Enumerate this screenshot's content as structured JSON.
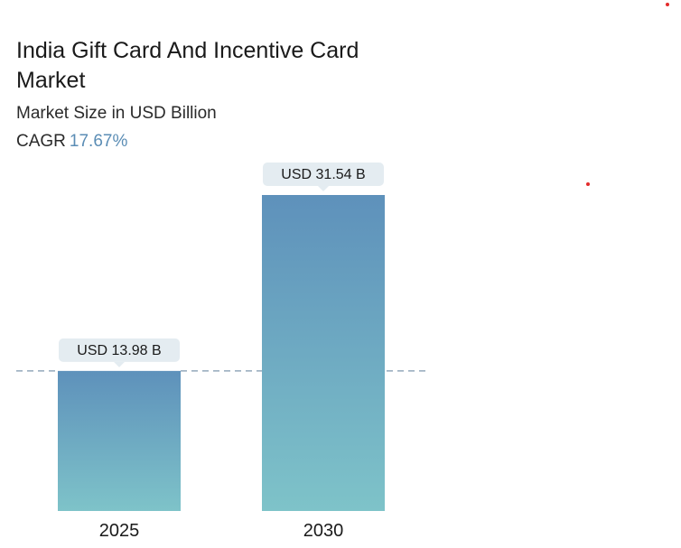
{
  "header": {
    "title": "India Gift Card And Incentive Card Market",
    "subtitle": "Market Size in USD Billion",
    "cagr_label": "CAGR",
    "cagr_value": "17.67%"
  },
  "colors": {
    "bar_top": "#5e91bb",
    "bar_bottom": "#7ec3c9",
    "label_bg": "#e4ecf1",
    "reference_line": "#7f97ad",
    "cagr": "#5b8db5",
    "accent_dot": "#e32b2b"
  },
  "chart_data": {
    "type": "bar",
    "categories": [
      "2025",
      "2030"
    ],
    "values": [
      13.98,
      31.54
    ],
    "value_labels": [
      "USD 13.98 B",
      "USD 31.54 B"
    ],
    "ylabel": "",
    "xlabel": "",
    "grid": false,
    "reference_line_value": 13.98
  }
}
